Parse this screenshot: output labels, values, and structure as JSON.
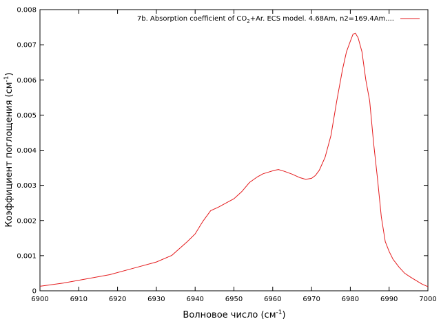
{
  "chart_data": {
    "type": "line",
    "xlabel": "Волновое число (см",
    "xlabel_sup": "-1",
    "xlabel_end": ")",
    "ylabel": "Коэффициент поглощения (см",
    "ylabel_sup": "-1",
    "ylabel_end": ")",
    "xlim": [
      6900,
      7000
    ],
    "ylim": [
      0,
      0.008
    ],
    "x_ticks": [
      6900,
      6910,
      6920,
      6930,
      6940,
      6950,
      6960,
      6970,
      6980,
      6990,
      7000
    ],
    "y_ticks": [
      0,
      0.001,
      0.002,
      0.003,
      0.004,
      0.005,
      0.006,
      0.007,
      0.008
    ],
    "y_tick_labels": [
      "0",
      "0.001",
      "0.002",
      "0.003",
      "0.004",
      "0.005",
      "0.006",
      "0.007",
      "0.008"
    ],
    "grid": false,
    "legend_placement": "top-right",
    "series": [
      {
        "name_parts": {
          "pre": "7b. Absorption coefficient of CO",
          "sub": "2",
          "post": "+Ar. ECS model. 4.68Am, n2=169.4Am...."
        },
        "color": "#e41a1c",
        "x": [
          6900,
          6906,
          6912,
          6918,
          6924,
          6930,
          6934,
          6938,
          6940,
          6942,
          6944,
          6946,
          6948,
          6950,
          6952,
          6954,
          6956,
          6957.5,
          6959,
          6960.5,
          6961.5,
          6963,
          6965,
          6967,
          6968.5,
          6970,
          6971,
          6972,
          6973.5,
          6975,
          6976.5,
          6978,
          6979,
          6980,
          6980.7,
          6981.3,
          6982,
          6983,
          6984,
          6985,
          6986,
          6987,
          6988,
          6989,
          6990,
          6991,
          6992.5,
          6994,
          6995.5,
          6997,
          6998.5,
          7000
        ],
        "y": [
          0.00013,
          0.00022,
          0.00034,
          0.00046,
          0.00064,
          0.00082,
          0.00101,
          0.0014,
          0.00162,
          0.00198,
          0.00228,
          0.00238,
          0.0025,
          0.00262,
          0.00282,
          0.00308,
          0.00324,
          0.00333,
          0.00338,
          0.00343,
          0.00345,
          0.0034,
          0.00332,
          0.00322,
          0.00317,
          0.0032,
          0.00328,
          0.00343,
          0.0038,
          0.00442,
          0.0054,
          0.0063,
          0.0068,
          0.0071,
          0.0073,
          0.00733,
          0.0072,
          0.0068,
          0.006,
          0.0054,
          0.0042,
          0.0032,
          0.0021,
          0.0014,
          0.00112,
          0.0009,
          0.00068,
          0.0005,
          0.00039,
          0.00029,
          0.00019,
          0.00012
        ]
      }
    ]
  }
}
